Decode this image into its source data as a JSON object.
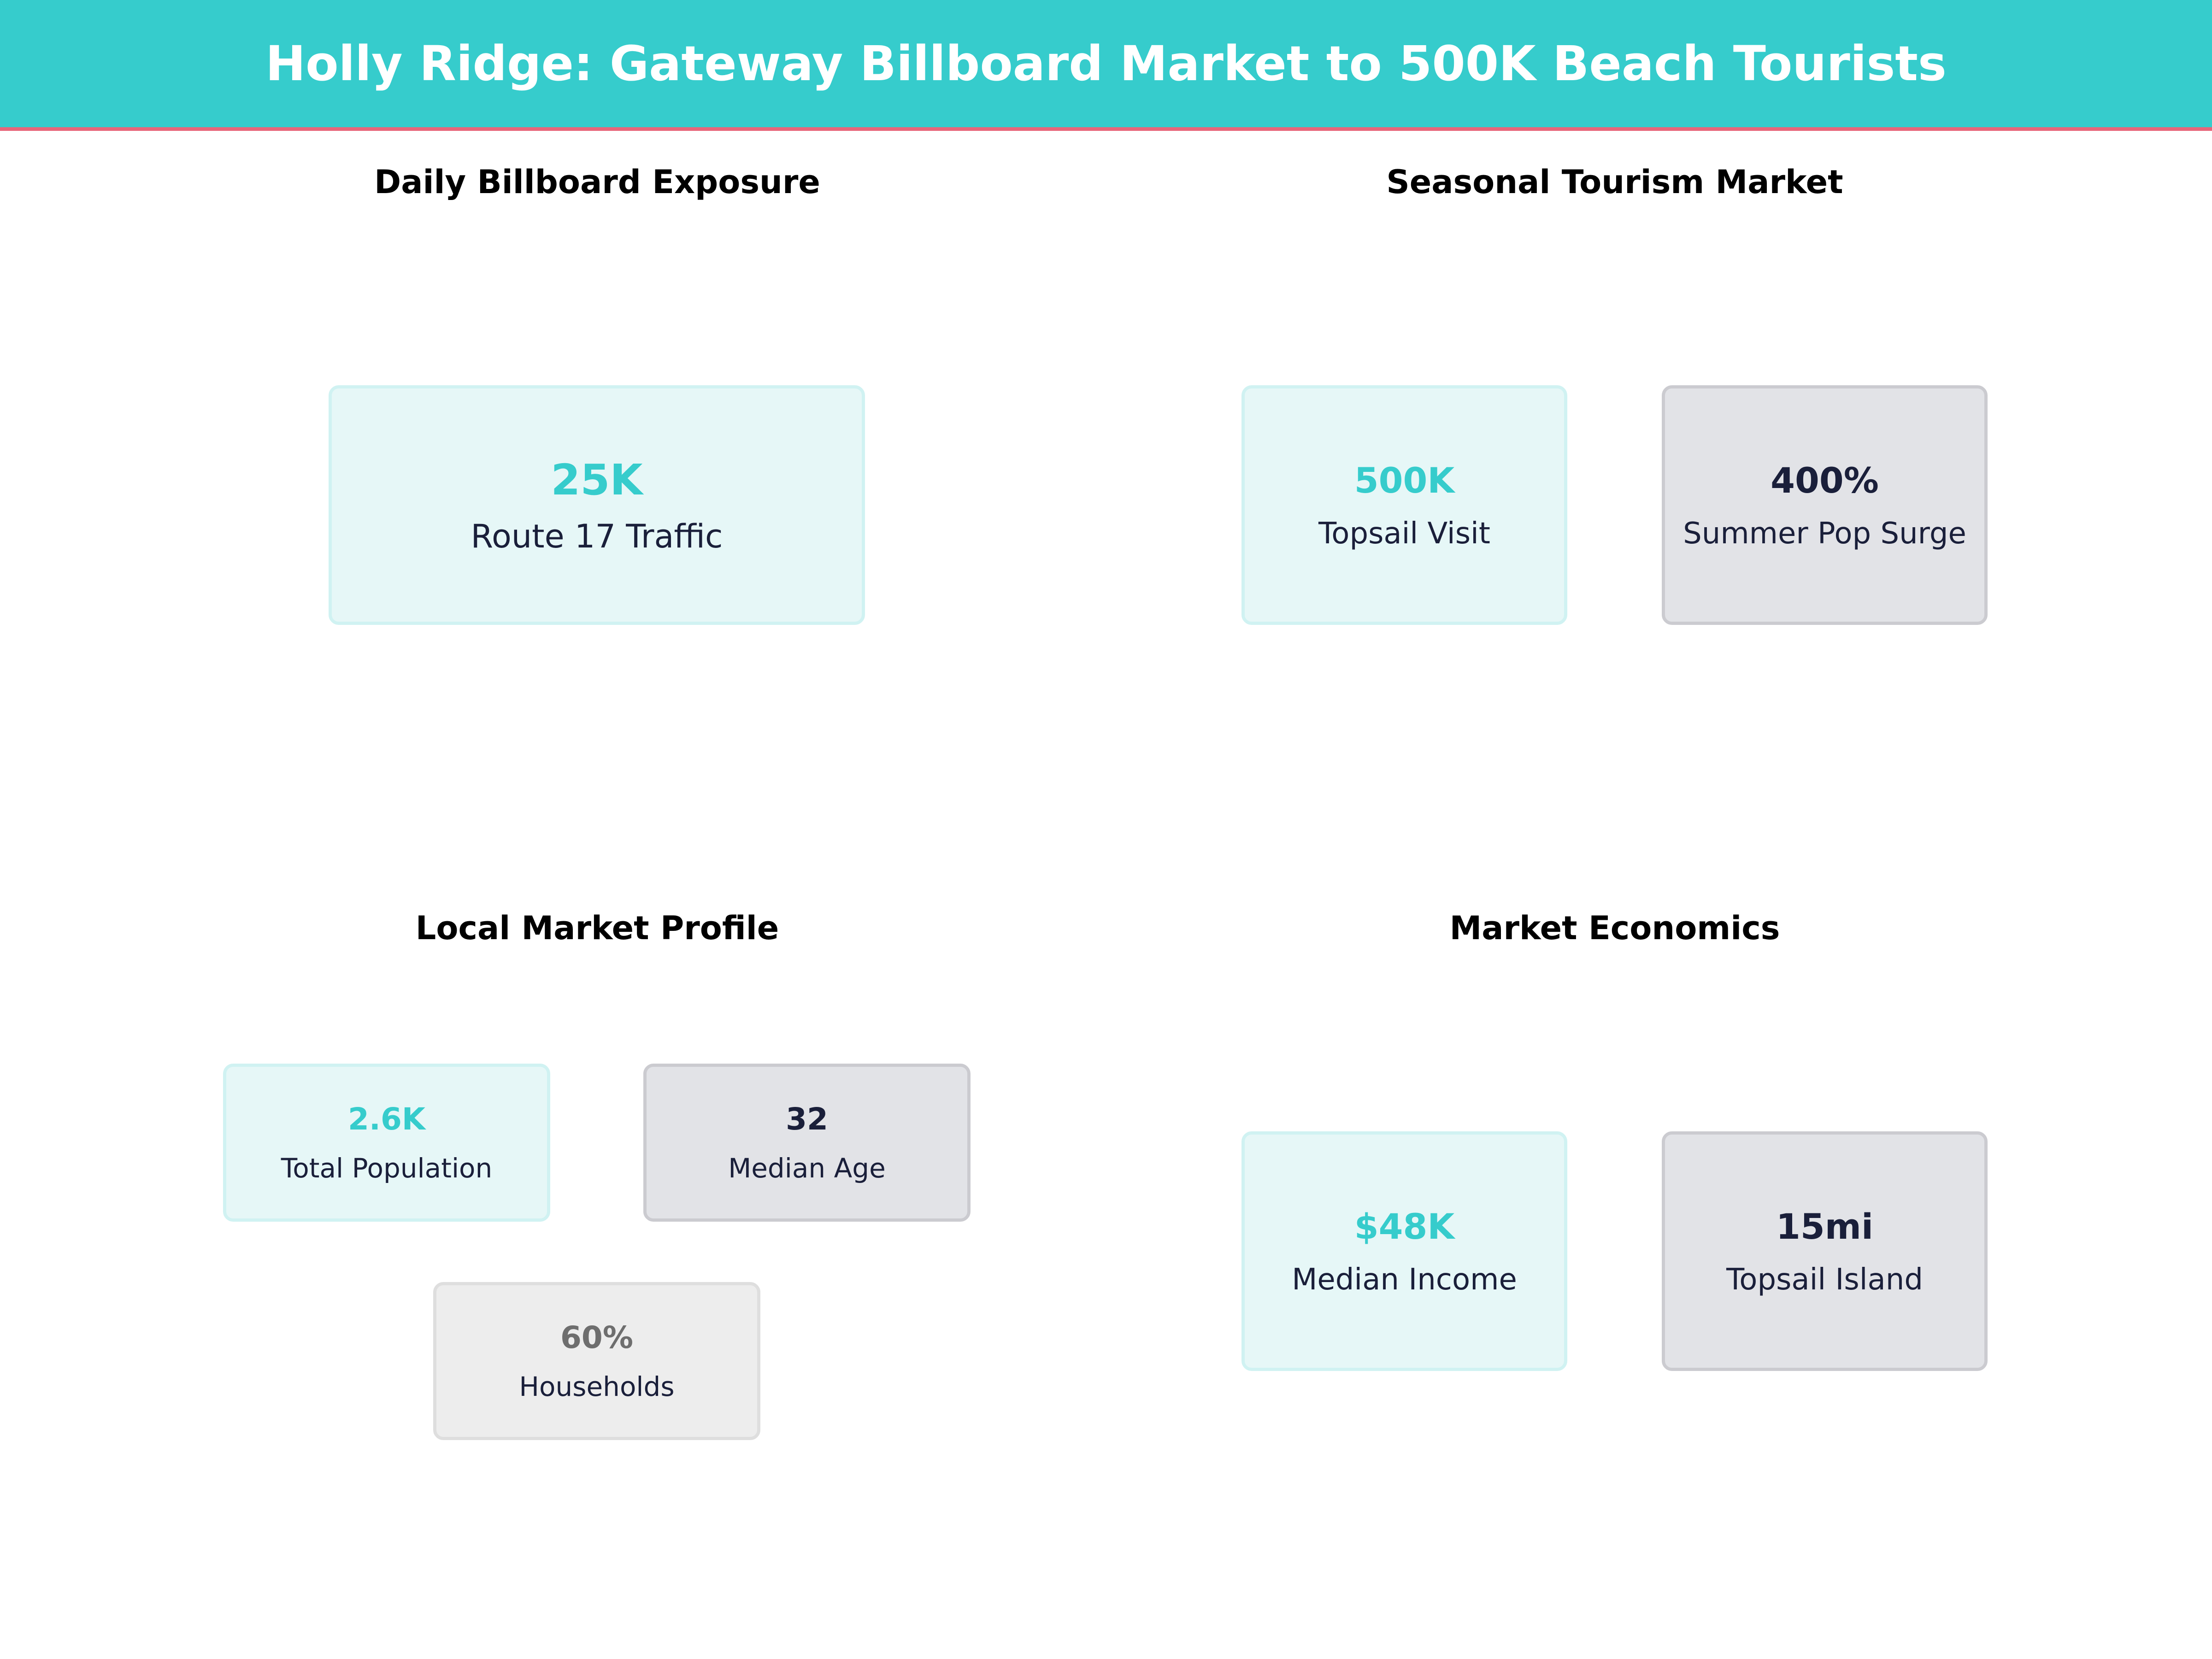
{
  "header": {
    "title": "Holly Ridge: Gateway Billboard Market to 500K Beach Tourists"
  },
  "colors": {
    "accent": "#36CCCC",
    "header_underline": "#E8667A",
    "dark_text": "#1A1F3A"
  },
  "sections": [
    {
      "title": "Daily Billboard Exposure",
      "cards": [
        {
          "value": "25K",
          "label": "Route 17 Traffic",
          "style": "teal"
        }
      ]
    },
    {
      "title": "Seasonal Tourism Market",
      "cards": [
        {
          "value": "500K",
          "label": "Topsail Visit",
          "style": "teal"
        },
        {
          "value": "400%",
          "label": "Summer Pop Surge",
          "style": "gray"
        }
      ]
    },
    {
      "title": "Local Market Profile",
      "cards": [
        {
          "value": "2.6K",
          "label": "Total Population",
          "style": "teal"
        },
        {
          "value": "32",
          "label": "Median Age",
          "style": "gray"
        },
        {
          "value": "60%",
          "label": "Households",
          "style": "light"
        }
      ]
    },
    {
      "title": "Market Economics",
      "cards": [
        {
          "value": "$48K",
          "label": "Median Income",
          "style": "teal"
        },
        {
          "value": "15mi",
          "label": "Topsail Island",
          "style": "gray"
        }
      ]
    }
  ]
}
